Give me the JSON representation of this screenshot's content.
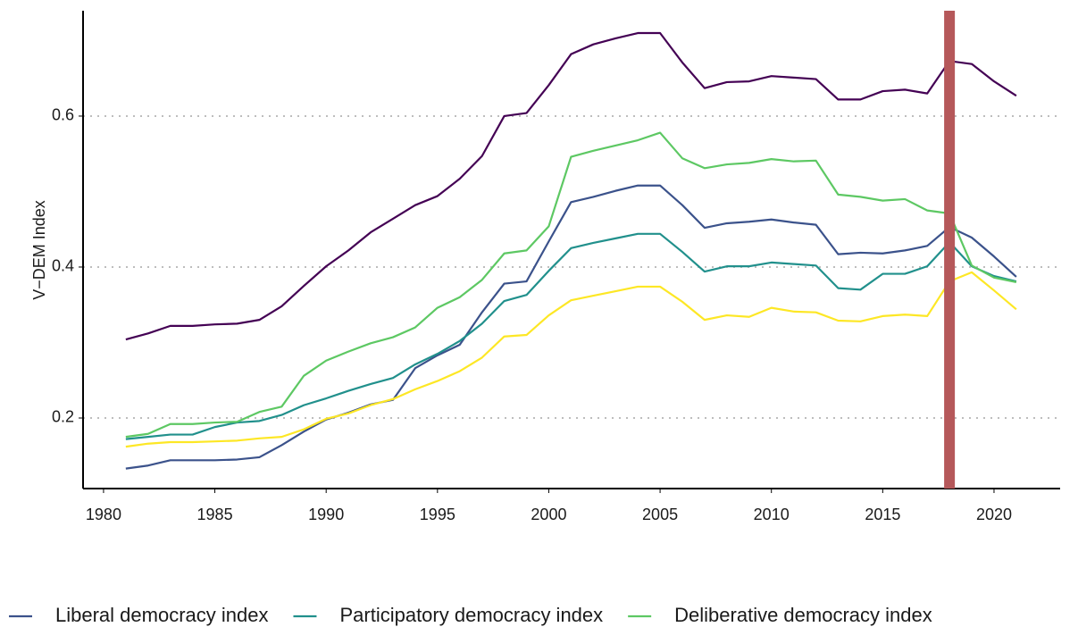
{
  "chart_data": {
    "type": "line",
    "y_label": "V−DEM Index",
    "xlim": [
      1979.08,
      2022.97
    ],
    "ylim": [
      0.1065,
      0.7396
    ],
    "xticks": [
      1980,
      1985,
      1990,
      1995,
      2000,
      2005,
      2010,
      2015,
      2020
    ],
    "yticks": [
      0.2,
      0.4,
      0.6
    ],
    "grid": true,
    "legend_position": "bottom",
    "highlight_x": 2018,
    "highlight_color": "#b5585a",
    "x": [
      1981,
      1982,
      1983,
      1984,
      1985,
      1986,
      1987,
      1988,
      1989,
      1990,
      1991,
      1992,
      1993,
      1994,
      1995,
      1996,
      1997,
      1998,
      1999,
      2000,
      2001,
      2002,
      2003,
      2004,
      2005,
      2006,
      2007,
      2008,
      2009,
      2010,
      2011,
      2012,
      2013,
      2014,
      2015,
      2016,
      2017,
      2018,
      2019,
      2020,
      2021
    ],
    "series": [
      {
        "color": "#440154",
        "values": [
          0.304,
          0.312,
          0.322,
          0.322,
          0.324,
          0.325,
          0.33,
          0.348,
          0.375,
          0.401,
          0.422,
          0.446,
          0.464,
          0.482,
          0.494,
          0.517,
          0.547,
          0.6,
          0.604,
          0.641,
          0.682,
          0.695,
          0.703,
          0.71,
          0.71,
          0.671,
          0.637,
          0.645,
          0.646,
          0.653,
          0.651,
          0.649,
          0.622,
          0.622,
          0.633,
          0.635,
          0.63,
          0.673,
          0.669,
          0.646,
          0.627
        ]
      },
      {
        "name": "Liberal democracy index",
        "color": "#3b528b",
        "values": [
          0.133,
          0.137,
          0.144,
          0.144,
          0.144,
          0.145,
          0.148,
          0.164,
          0.182,
          0.198,
          0.207,
          0.218,
          0.224,
          0.266,
          0.283,
          0.297,
          0.34,
          0.378,
          0.381,
          0.434,
          0.486,
          0.493,
          0.501,
          0.508,
          0.508,
          0.482,
          0.452,
          0.458,
          0.46,
          0.463,
          0.459,
          0.456,
          0.417,
          0.419,
          0.418,
          0.422,
          0.428,
          0.453,
          0.439,
          0.414,
          0.387
        ]
      },
      {
        "name": "Participatory democracy index",
        "color": "#21908c",
        "values": [
          0.172,
          0.175,
          0.178,
          0.178,
          0.188,
          0.194,
          0.196,
          0.204,
          0.217,
          0.226,
          0.236,
          0.245,
          0.253,
          0.271,
          0.285,
          0.302,
          0.325,
          0.355,
          0.363,
          0.395,
          0.425,
          0.432,
          0.438,
          0.444,
          0.444,
          0.42,
          0.394,
          0.401,
          0.401,
          0.406,
          0.404,
          0.402,
          0.372,
          0.37,
          0.391,
          0.391,
          0.401,
          0.433,
          0.401,
          0.388,
          0.381
        ]
      },
      {
        "name": "Deliberative democracy index",
        "color": "#5dc863",
        "values": [
          0.175,
          0.179,
          0.192,
          0.192,
          0.194,
          0.195,
          0.208,
          0.215,
          0.256,
          0.276,
          0.288,
          0.299,
          0.307,
          0.32,
          0.346,
          0.36,
          0.383,
          0.418,
          0.422,
          0.454,
          0.546,
          0.554,
          0.561,
          0.568,
          0.578,
          0.544,
          0.531,
          0.536,
          0.538,
          0.543,
          0.54,
          0.541,
          0.496,
          0.493,
          0.488,
          0.49,
          0.475,
          0.471,
          0.402,
          0.386,
          0.38
        ]
      },
      {
        "color": "#fde725",
        "values": [
          0.162,
          0.166,
          0.168,
          0.168,
          0.169,
          0.17,
          0.173,
          0.175,
          0.185,
          0.199,
          0.206,
          0.217,
          0.225,
          0.238,
          0.249,
          0.262,
          0.28,
          0.308,
          0.31,
          0.336,
          0.356,
          0.362,
          0.368,
          0.374,
          0.374,
          0.354,
          0.33,
          0.336,
          0.334,
          0.346,
          0.341,
          0.34,
          0.329,
          0.328,
          0.335,
          0.337,
          0.335,
          0.381,
          0.393,
          0.369,
          0.344
        ]
      }
    ]
  }
}
